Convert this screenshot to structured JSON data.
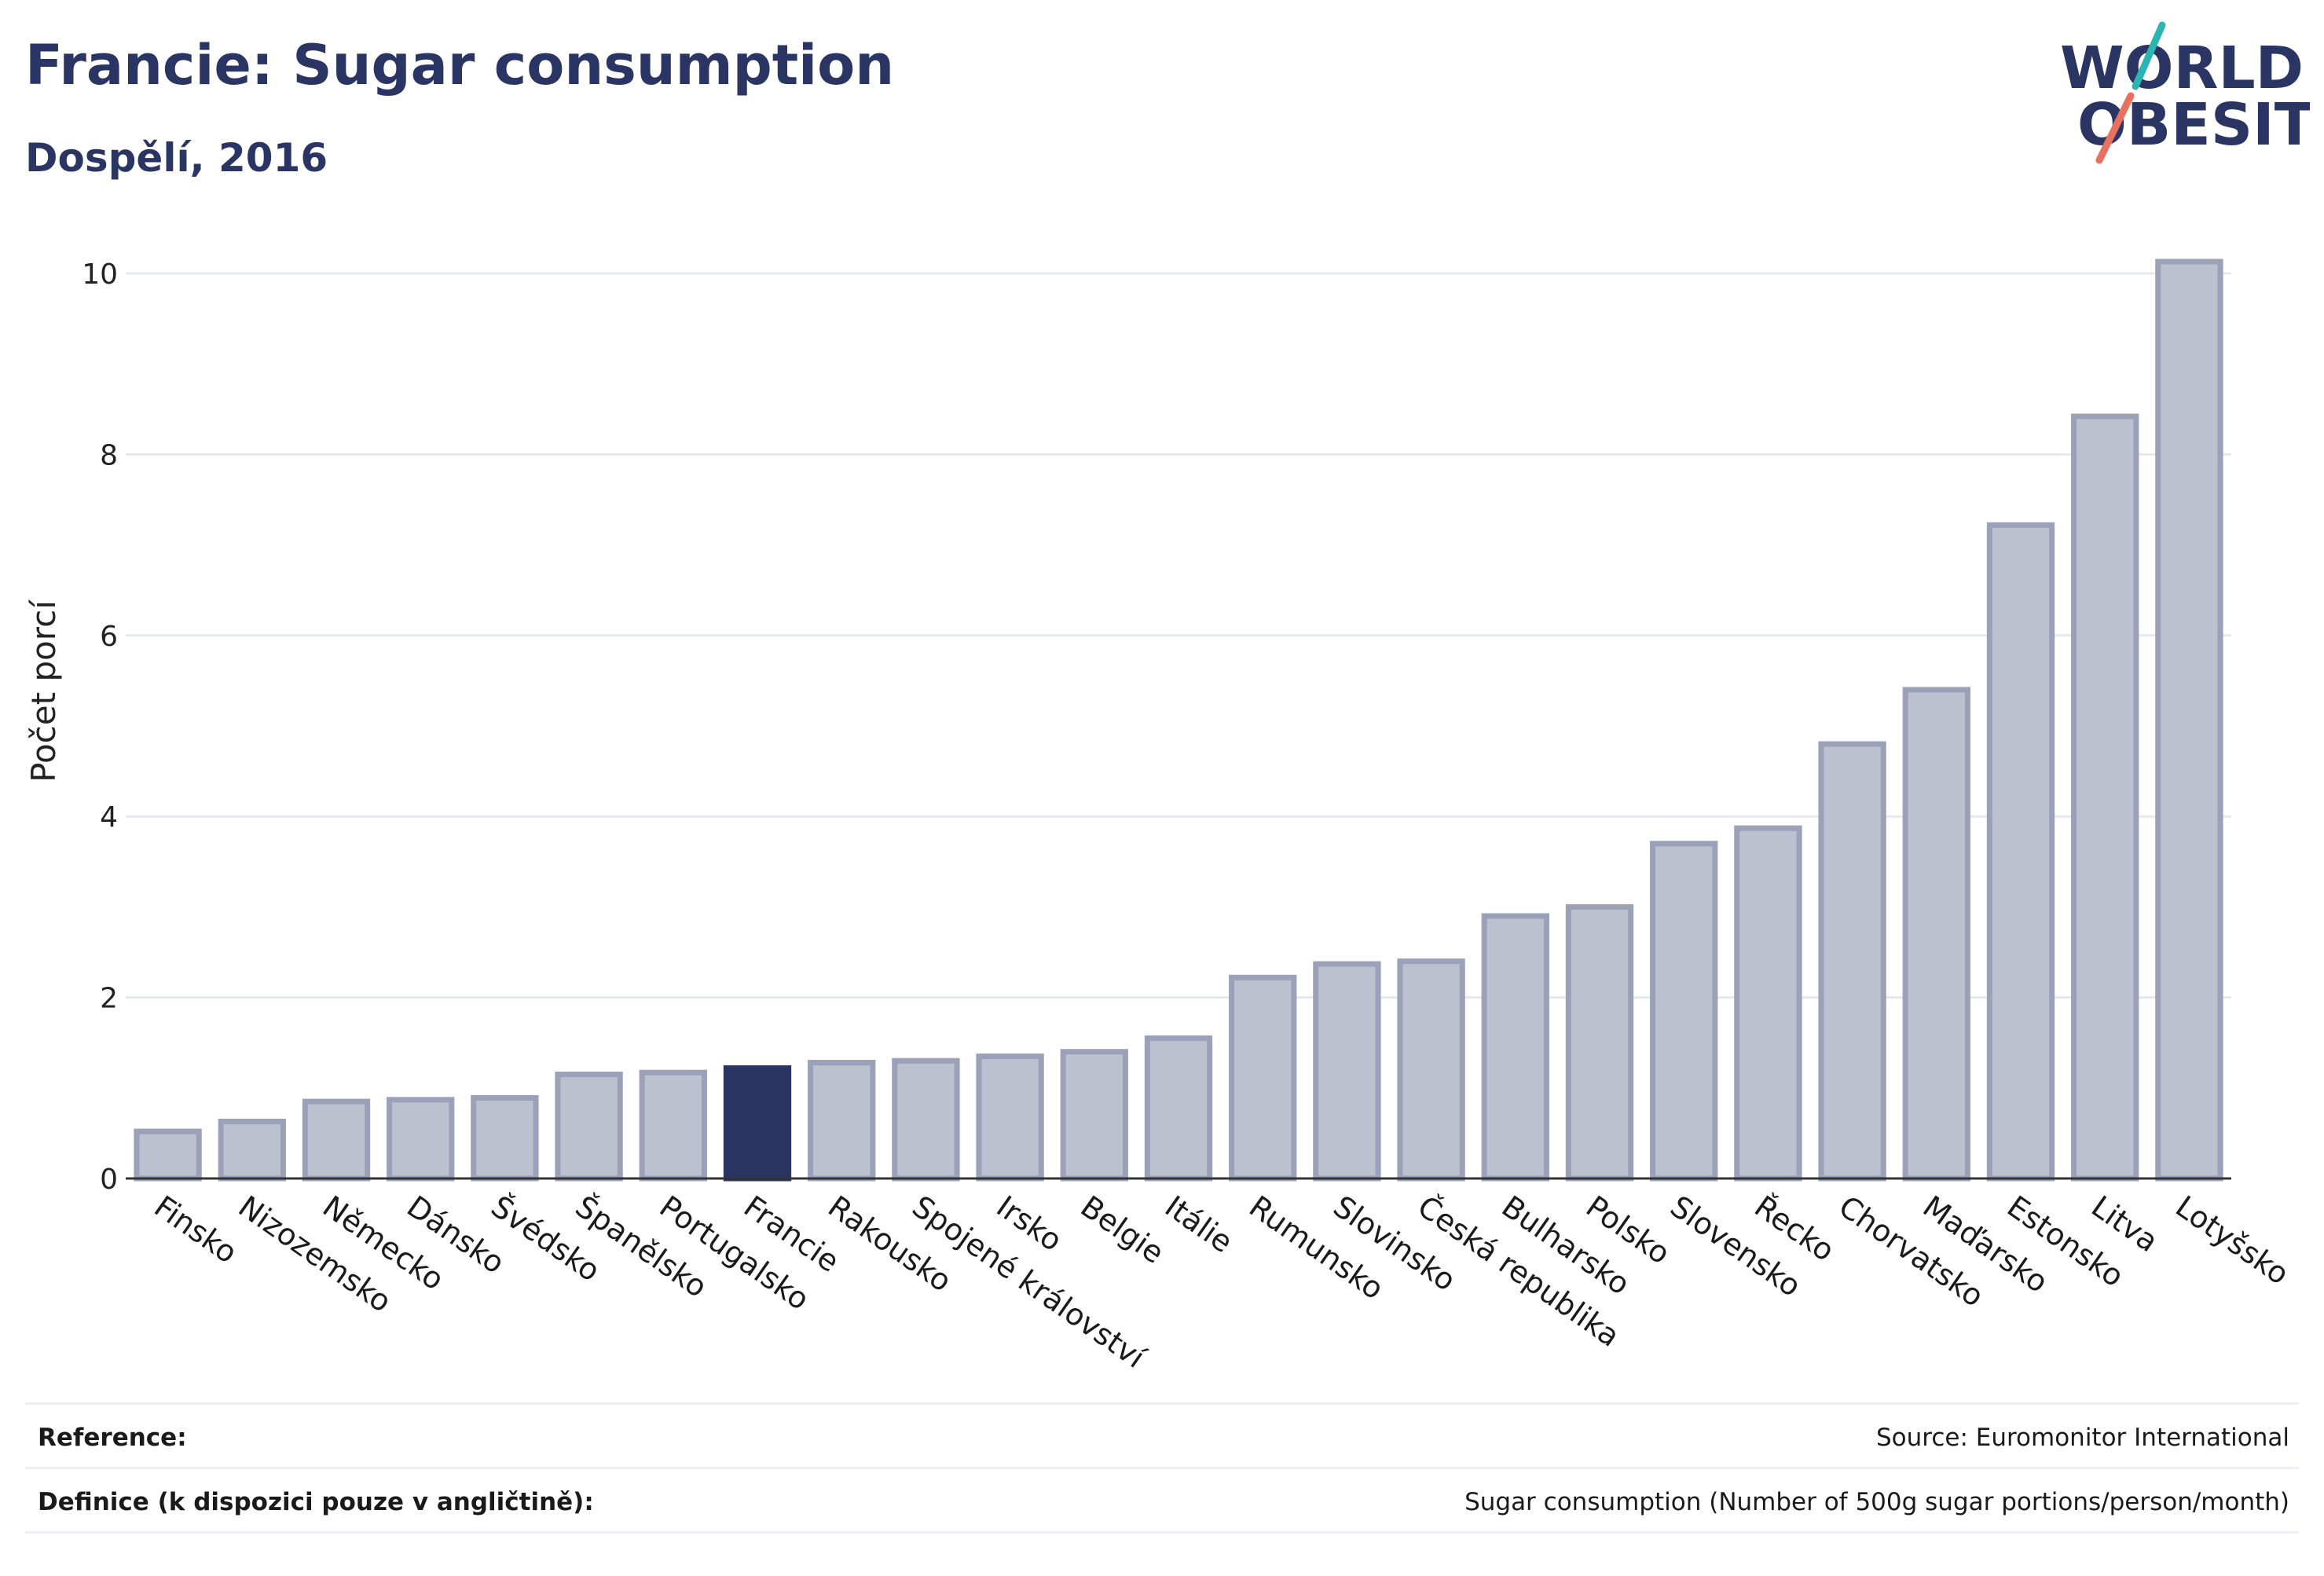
{
  "header": {
    "title": "Francie: Sugar consumption",
    "subtitle": "Dospělí, 2016"
  },
  "logo": {
    "line1": "WORLD",
    "line2": "OBESITY",
    "text_color": "#2a3563",
    "slash_top_color": "#2bb5b0",
    "slash_bottom_color": "#e8705e"
  },
  "colors": {
    "bar_fill": "#bcc0cf",
    "bar_stroke": "#9aa1b8",
    "highlight_fill": "#2a3563",
    "grid": "#e6e8ef",
    "axis": "#333333"
  },
  "chart_data": {
    "type": "bar",
    "title": "Francie: Sugar consumption",
    "subtitle": "Dospělí, 2016",
    "xlabel": "",
    "ylabel": "Počet porcí",
    "ylim": [
      0,
      10.5
    ],
    "yticks": [
      0,
      2,
      4,
      6,
      8,
      10
    ],
    "grid": true,
    "highlight": "Francie",
    "categories": [
      "Finsko",
      "Nizozemsko",
      "Německo",
      "Dánsko",
      "Švédsko",
      "Španělsko",
      "Portugalsko",
      "Francie",
      "Rakousko",
      "Spojené království",
      "Irsko",
      "Belgie",
      "Itálie",
      "Rumunsko",
      "Slovinsko",
      "Česká republika",
      "Bulharsko",
      "Polsko",
      "Slovensko",
      "Řecko",
      "Chorvatsko",
      "Maďarsko",
      "Estonsko",
      "Litva",
      "Lotyšsko"
    ],
    "values": [
      0.52,
      0.63,
      0.85,
      0.87,
      0.89,
      1.15,
      1.17,
      1.22,
      1.28,
      1.3,
      1.35,
      1.4,
      1.55,
      2.22,
      2.37,
      2.4,
      2.9,
      3.0,
      3.7,
      3.87,
      4.8,
      5.4,
      7.22,
      8.42,
      10.13
    ]
  },
  "footer": {
    "reference_label": "Reference:",
    "reference_value": "Source: Euromonitor International",
    "definition_label": "Definice (k dispozici pouze v angličtině):",
    "definition_value": "Sugar consumption (Number of 500g sugar portions/person/month)"
  }
}
